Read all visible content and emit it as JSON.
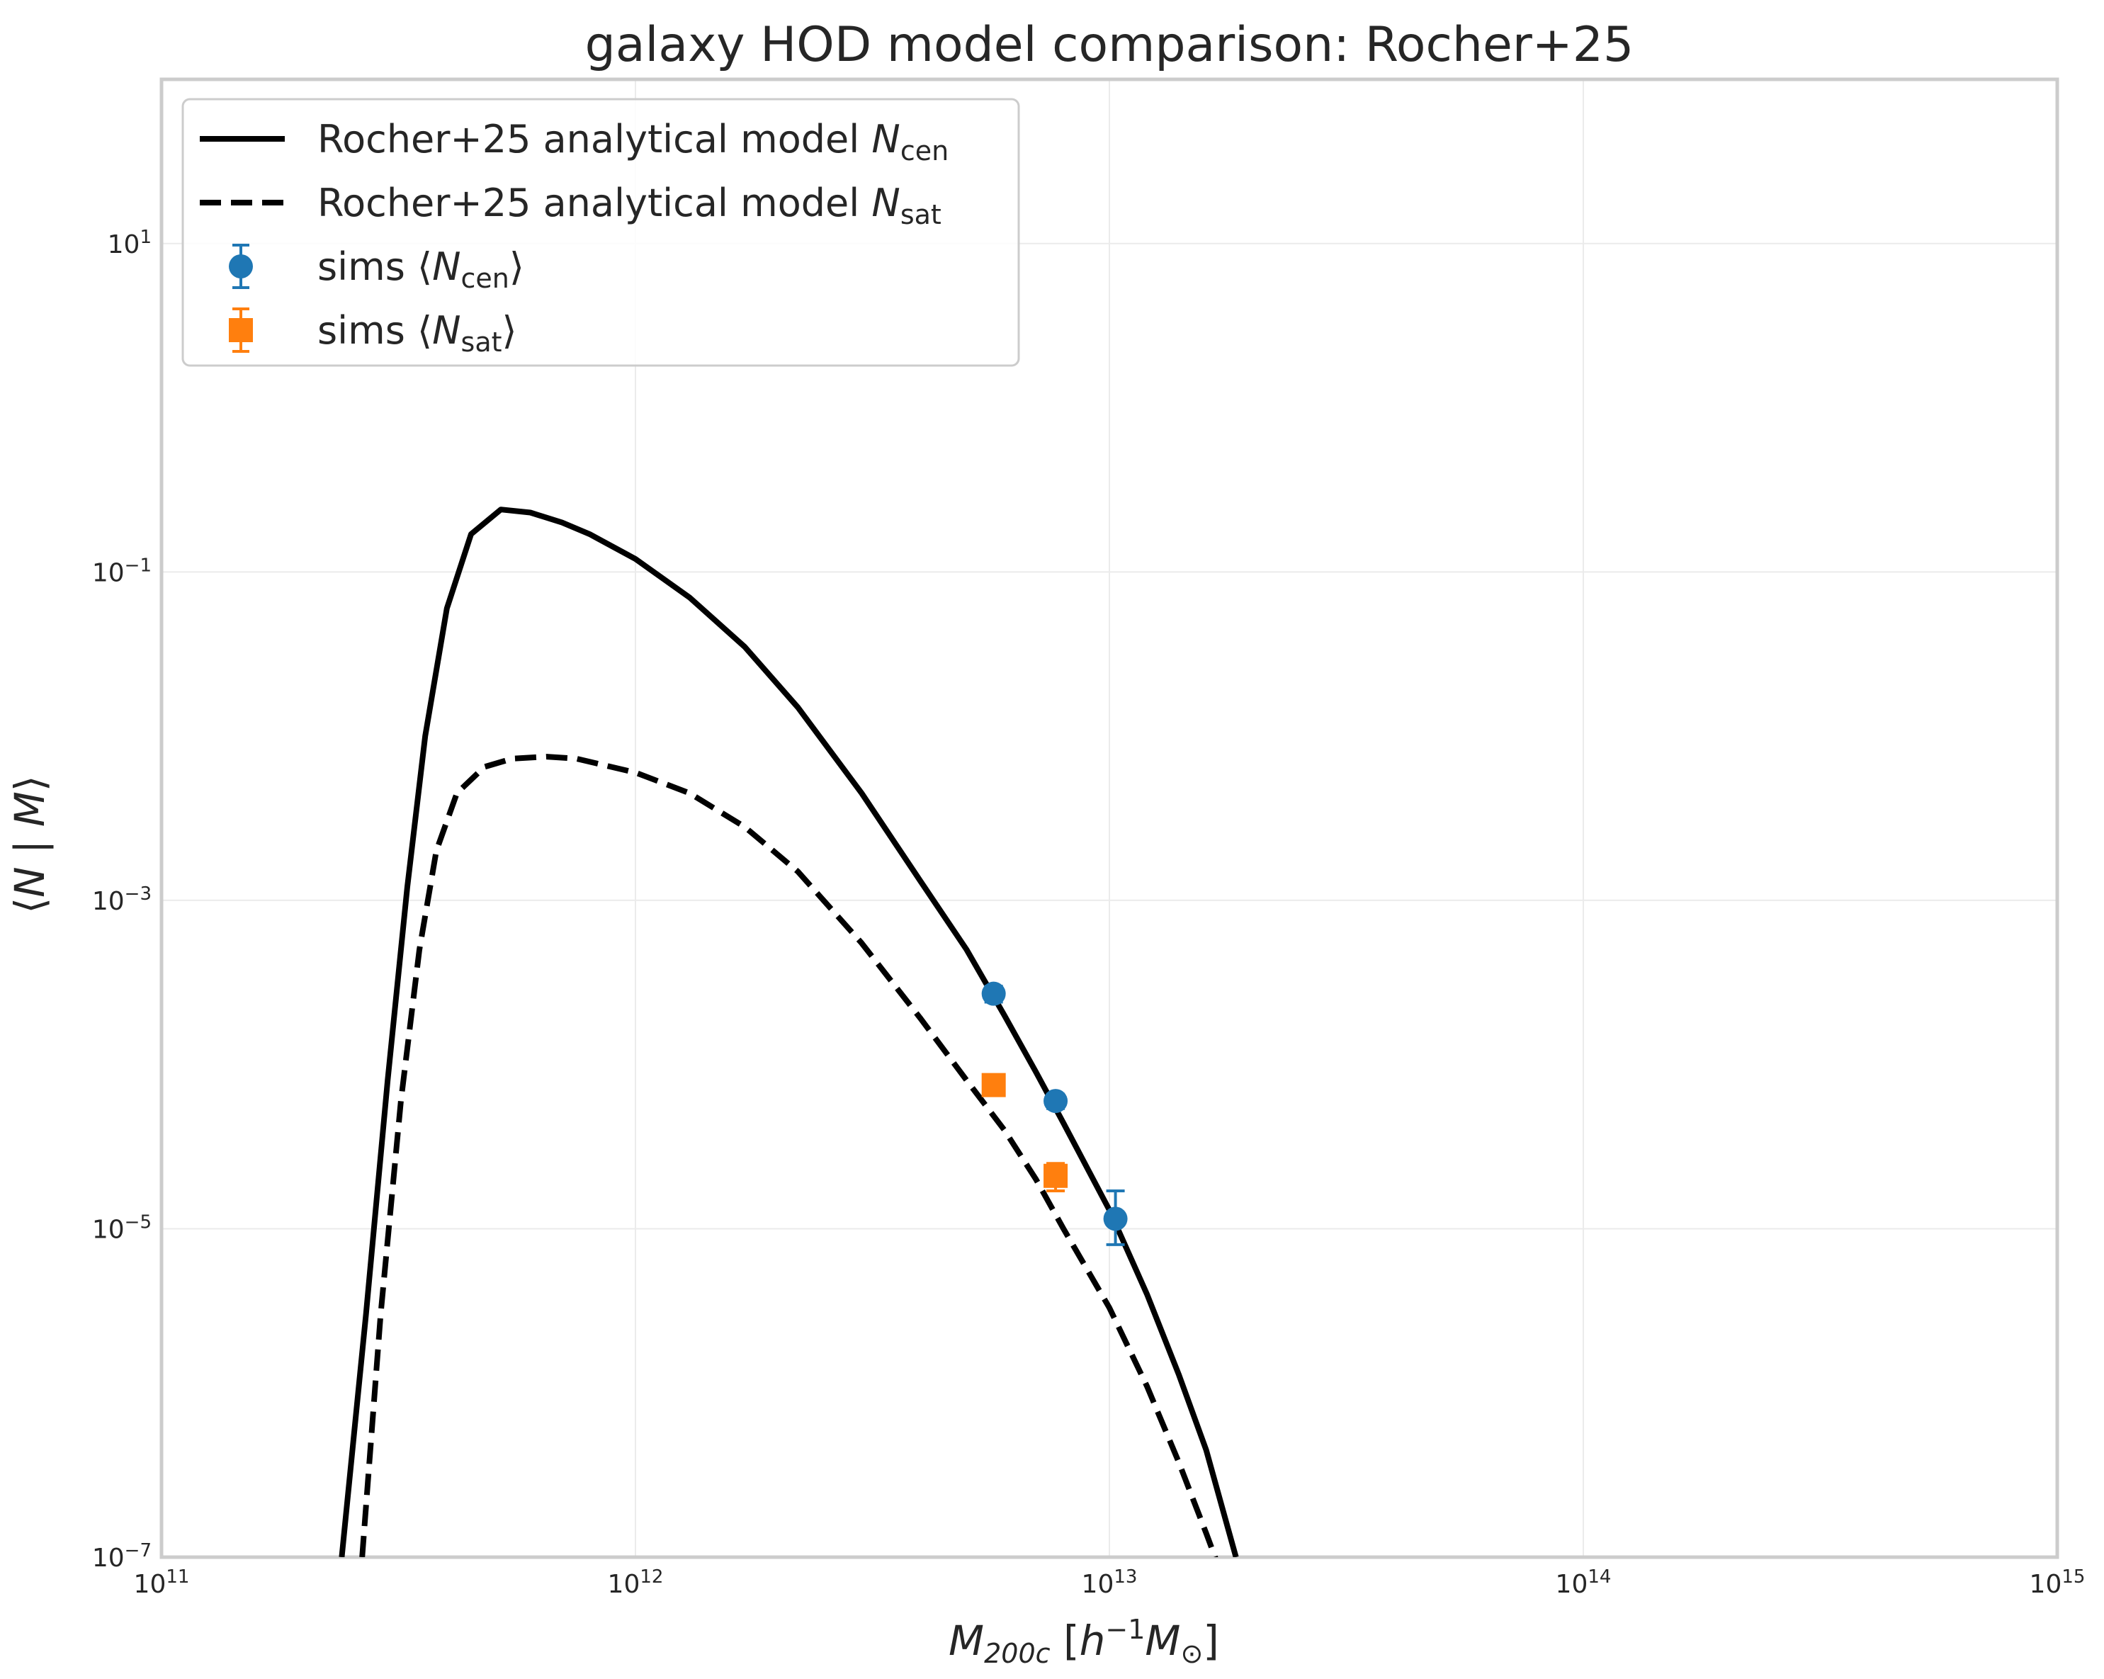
{
  "chart_data": {
    "type": "line",
    "title": "galaxy HOD model comparison: Rocher+25",
    "xlabel": "M_200c [h^-1 M_⊙]",
    "ylabel": "⟨N | M⟩",
    "xscale": "log",
    "yscale": "log",
    "xlim": [
      100000000000.0,
      1000000000000000.0
    ],
    "ylim": [
      1e-07,
      100
    ],
    "x_ticks": [
      {
        "value": 100000000000.0,
        "base": "10",
        "exp": "11"
      },
      {
        "value": 1000000000000.0,
        "base": "10",
        "exp": "12"
      },
      {
        "value": 10000000000000.0,
        "base": "10",
        "exp": "13"
      },
      {
        "value": 100000000000000.0,
        "base": "10",
        "exp": "14"
      },
      {
        "value": 1000000000000000.0,
        "base": "10",
        "exp": "15"
      }
    ],
    "y_ticks": [
      {
        "value": 1e-07,
        "base": "10",
        "exp": "−7"
      },
      {
        "value": 1e-05,
        "base": "10",
        "exp": "−5"
      },
      {
        "value": 0.001,
        "base": "10",
        "exp": "−3"
      },
      {
        "value": 0.1,
        "base": "10",
        "exp": "−1"
      },
      {
        "value": 10,
        "base": "10",
        "exp": "1"
      }
    ],
    "grid": true,
    "legend_position": "top-left",
    "series": [
      {
        "label": "Rocher+25 analytical model",
        "label_var": "N",
        "label_sub": "cen",
        "style": "solid",
        "color": "#000000",
        "x": [
          240000000000.0,
          270000000000.0,
          300000000000.0,
          330000000000.0,
          360000000000.0,
          400000000000.0,
          450000000000.0,
          520000000000.0,
          600000000000.0,
          700000000000.0,
          800000000000.0,
          1000000000000.0,
          1300000000000.0,
          1700000000000.0,
          2200000000000.0,
          3000000000000.0,
          4000000000000.0,
          5000000000000.0,
          6000000000000.0,
          7000000000000.0,
          8000000000000.0,
          10000000000000.0,
          12000000000000.0,
          14000000000000.0,
          16000000000000.0,
          18500000000000.0
        ],
        "y": [
          1e-07,
          3e-06,
          8e-05,
          0.0012,
          0.01,
          0.06,
          0.17,
          0.24,
          0.23,
          0.2,
          0.17,
          0.12,
          0.07,
          0.035,
          0.015,
          0.0045,
          0.0013,
          0.0005,
          0.0002,
          9e-05,
          4.4e-05,
          1.3e-05,
          4e-06,
          1.3e-06,
          4.5e-07,
          1e-07
        ]
      },
      {
        "label": "Rocher+25 analytical model",
        "label_var": "N",
        "label_sub": "sat",
        "style": "dashed",
        "color": "#000000",
        "x": [
          265000000000.0,
          290000000000.0,
          320000000000.0,
          350000000000.0,
          380000000000.0,
          420000000000.0,
          480000000000.0,
          550000000000.0,
          650000000000.0,
          750000000000.0,
          1000000000000.0,
          1300000000000.0,
          1700000000000.0,
          2200000000000.0,
          3000000000000.0,
          4000000000000.0,
          5000000000000.0,
          6000000000000.0,
          7000000000000.0,
          8000000000000.0,
          10000000000000.0,
          12000000000000.0,
          14000000000000.0,
          16000000000000.0,
          17500000000000.0
        ],
        "y": [
          1e-07,
          3e-06,
          6e-05,
          0.0005,
          0.002,
          0.0045,
          0.0065,
          0.0073,
          0.0075,
          0.0073,
          0.006,
          0.0045,
          0.0028,
          0.0015,
          0.00055,
          0.00019,
          8e-05,
          4e-05,
          2e-05,
          1e-05,
          3.3e-06,
          1.1e-06,
          3.8e-07,
          1.4e-07,
          7e-08
        ]
      }
    ],
    "points": [
      {
        "label": "sims",
        "label_var": "N",
        "label_sub": "cen",
        "marker": "circle",
        "color": "#1f77b4",
        "x": [
          5700000000000.0,
          7700000000000.0,
          10300000000000.0
        ],
        "y": [
          0.00027,
          6e-05,
          1.15e-05
        ],
        "yerr_low": [
          0.00024,
          5.4e-05,
          8e-06
        ],
        "yerr_high": [
          0.0003,
          6.6e-05,
          1.7e-05
        ]
      },
      {
        "label": "sims",
        "label_var": "N",
        "label_sub": "sat",
        "marker": "square",
        "color": "#ff7f0e",
        "x": [
          5700000000000.0,
          7700000000000.0
        ],
        "y": [
          7.5e-05,
          2.1e-05
        ],
        "yerr_low": [
          6.8e-05,
          1.7e-05
        ],
        "yerr_high": [
          8.2e-05,
          2.5e-05
        ]
      }
    ]
  }
}
